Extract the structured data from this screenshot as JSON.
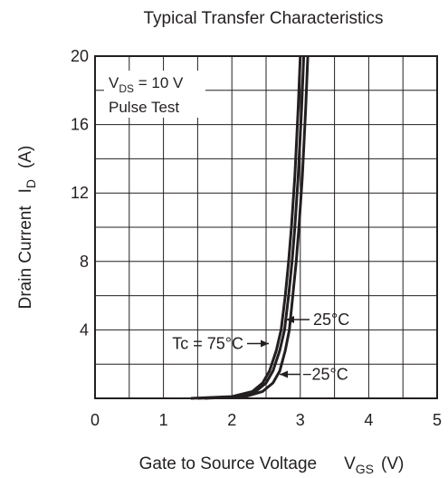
{
  "chart_data": {
    "type": "line",
    "title": "Typical Transfer Characteristics",
    "xlabel": "Gate to Source Voltage",
    "xlabel_symbol": "V",
    "xlabel_symbol_sub": "GS",
    "xlabel_unit": "(V)",
    "ylabel": "Drain Current",
    "ylabel_symbol": "I",
    "ylabel_symbol_sub": "D",
    "ylabel_unit": "(A)",
    "xlim": [
      0,
      5
    ],
    "ylim": [
      0,
      20
    ],
    "x_ticks": [
      0,
      1,
      2,
      3,
      4,
      5
    ],
    "x_tick_labels": [
      "0",
      "1",
      "2",
      "3",
      "4",
      "5"
    ],
    "y_ticks": [
      4,
      8,
      12,
      16,
      20
    ],
    "y_tick_labels": [
      "4",
      "8",
      "12",
      "16",
      "20"
    ],
    "grid": true,
    "conditions": {
      "line1_main": "V",
      "line1_sub": "DS",
      "line1_rest": " = 10 V",
      "line2": "Pulse Test"
    },
    "series": [
      {
        "name": "Tc = 75°C",
        "x": [
          1.4,
          2.0,
          2.3,
          2.45,
          2.55,
          2.65,
          2.72,
          2.78,
          2.83,
          2.87,
          2.92,
          2.97,
          3.0
        ],
        "y": [
          0.0,
          0.1,
          0.4,
          0.9,
          1.6,
          2.8,
          4.0,
          6.0,
          8.0,
          10.0,
          13.0,
          17.0,
          20.0
        ]
      },
      {
        "name": "25°C",
        "x": [
          1.5,
          2.1,
          2.35,
          2.5,
          2.6,
          2.7,
          2.77,
          2.83,
          2.88,
          2.92,
          2.97,
          3.02,
          3.05
        ],
        "y": [
          0.0,
          0.1,
          0.4,
          0.9,
          1.6,
          2.8,
          4.0,
          6.0,
          8.0,
          10.0,
          13.0,
          17.0,
          20.0
        ]
      },
      {
        "name": "−25°C",
        "x": [
          1.6,
          2.2,
          2.45,
          2.6,
          2.7,
          2.78,
          2.84,
          2.89,
          2.94,
          2.98,
          3.03,
          3.08,
          3.11
        ],
        "y": [
          0.0,
          0.1,
          0.4,
          0.9,
          1.6,
          2.8,
          4.0,
          6.0,
          8.0,
          10.0,
          13.0,
          17.0,
          20.0
        ]
      }
    ],
    "annotations": [
      {
        "text": "25°C",
        "series": "25°C"
      },
      {
        "text": "Tc = 75°C",
        "series": "Tc = 75°C"
      },
      {
        "text": "−25°C",
        "series": "−25°C"
      }
    ]
  }
}
